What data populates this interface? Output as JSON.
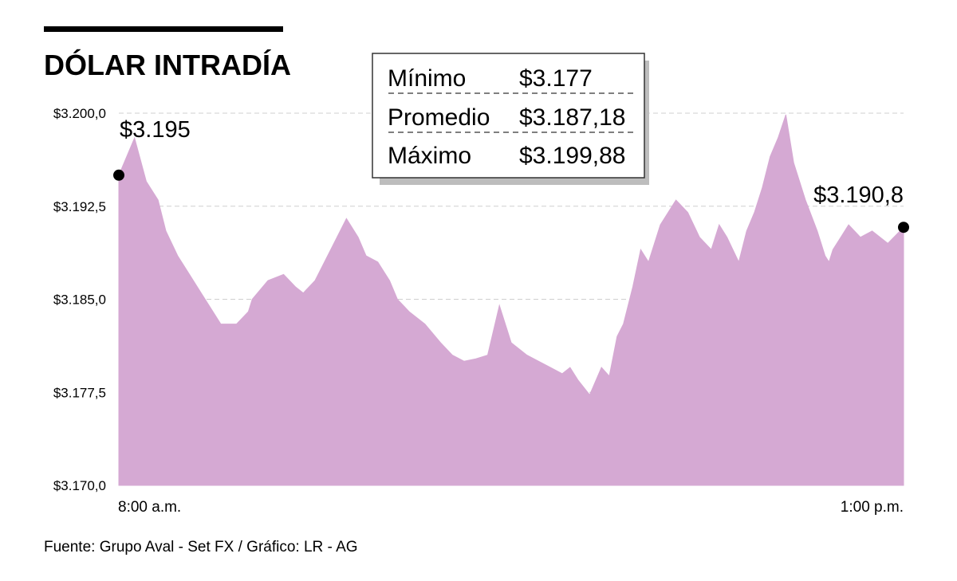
{
  "chart_data": {
    "type": "area",
    "title": "DÓLAR INTRADÍA",
    "ylim": [
      3170.0,
      3200.0
    ],
    "y_ticks": [
      {
        "value": 3200.0,
        "label": "$3.200,0"
      },
      {
        "value": 3192.5,
        "label": "$3.192,5"
      },
      {
        "value": 3185.0,
        "label": "$3.185,0"
      },
      {
        "value": 3177.5,
        "label": "$3.177,5"
      },
      {
        "value": 3170.0,
        "label": "$3.170,0"
      }
    ],
    "x_tick_labels": {
      "start": "8:00 a.m.",
      "end": "1:00 p.m."
    },
    "grid": "horizontal dashed",
    "colors": {
      "fill": "#d5a9d3",
      "text": "#000000",
      "grid": "#cfcfcf",
      "title_bar": "#000000"
    },
    "series": [
      {
        "x": [
          0,
          0.02,
          0.035,
          0.05,
          0.06,
          0.075,
          0.09,
          0.11,
          0.13,
          0.15,
          0.165,
          0.17,
          0.19,
          0.21,
          0.225,
          0.235,
          0.25,
          0.27,
          0.29,
          0.305,
          0.315,
          0.33,
          0.345,
          0.355,
          0.37,
          0.39,
          0.41,
          0.425,
          0.44,
          0.455,
          0.47,
          0.485,
          0.495,
          0.5,
          0.51,
          0.52,
          0.535,
          0.55,
          0.565,
          0.575,
          0.585,
          0.6,
          0.615,
          0.625,
          0.635,
          0.643,
          0.655,
          0.665,
          0.675,
          0.69,
          0.71,
          0.725,
          0.74,
          0.755,
          0.765,
          0.775,
          0.79,
          0.8,
          0.81,
          0.82,
          0.83,
          0.84,
          0.85,
          0.86,
          0.875,
          0.89,
          0.9,
          0.905,
          0.91,
          0.92,
          0.93,
          0.945,
          0.96,
          0.98,
          1.0
        ],
        "values": [
          3195.0,
          3198.0,
          3194.5,
          3193.0,
          3190.5,
          3188.5,
          3187.0,
          3185.0,
          3183.0,
          3183.0,
          3184.0,
          3185.0,
          3186.5,
          3187.0,
          3186.0,
          3185.5,
          3186.5,
          3189.0,
          3191.5,
          3190.0,
          3188.5,
          3188.0,
          3186.5,
          3185.0,
          3184.0,
          3183.0,
          3181.5,
          3180.5,
          3180.0,
          3180.2,
          3180.5,
          3184.5,
          3182.5,
          3181.5,
          3181.0,
          3180.5,
          3180.0,
          3179.5,
          3179.0,
          3179.5,
          3178.5,
          3177.3,
          3179.5,
          3178.8,
          3182.0,
          3183.0,
          3186.0,
          3189.0,
          3188.0,
          3191.0,
          3193.0,
          3192.0,
          3190.0,
          3189.0,
          3191.0,
          3190.0,
          3188.0,
          3190.5,
          3192.0,
          3194.0,
          3196.5,
          3198.0,
          3199.88,
          3196.0,
          3193.0,
          3190.5,
          3188.5,
          3188.0,
          3189.0,
          3190.0,
          3191.0,
          3190.0,
          3190.5,
          3189.5,
          3190.8
        ]
      }
    ],
    "annotations": {
      "start_value": "$3.195",
      "end_value": "$3.190,8"
    },
    "stats_box": [
      {
        "label": "Mínimo",
        "value": "$3.177"
      },
      {
        "label": "Promedio",
        "value": "$3.187,18"
      },
      {
        "label": "Máximo",
        "value": "$3.199,88"
      }
    ],
    "source": "Fuente: Grupo Aval - Set FX / Gráfico: LR - AG"
  }
}
